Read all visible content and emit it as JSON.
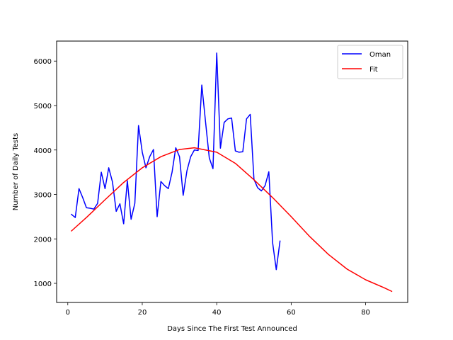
{
  "chart_data": {
    "type": "line",
    "title": "",
    "xlabel": "Days Since The First Test Announced",
    "ylabel": "Number of Daily Tests",
    "xlim": [
      -3,
      91.3
    ],
    "ylim": [
      570,
      6450
    ],
    "xticks": [
      0,
      20,
      40,
      60,
      80
    ],
    "yticks": [
      1000,
      2000,
      3000,
      4000,
      5000,
      6000
    ],
    "grid": false,
    "legend_position": "top-right",
    "series": [
      {
        "name": "Oman",
        "color": "#0000ff",
        "x": [
          1,
          2,
          3,
          4,
          5,
          6,
          7,
          8,
          9,
          10,
          11,
          12,
          13,
          14,
          15,
          16,
          17,
          18,
          19,
          20,
          21,
          22,
          23,
          24,
          25,
          26,
          27,
          28,
          29,
          30,
          31,
          32,
          33,
          34,
          35,
          36,
          37,
          38,
          39,
          40,
          41,
          42,
          43,
          44,
          45,
          46,
          47,
          48,
          49,
          50,
          51,
          52,
          53,
          54,
          55,
          56,
          57
        ],
        "y": [
          2550,
          2480,
          3130,
          2930,
          2700,
          2690,
          2670,
          2800,
          3500,
          3130,
          3600,
          3280,
          2620,
          2790,
          2340,
          3310,
          2440,
          2800,
          4550,
          3950,
          3600,
          3850,
          4010,
          2500,
          3290,
          3200,
          3130,
          3500,
          4050,
          3850,
          2980,
          3530,
          3850,
          4000,
          3990,
          5460,
          4630,
          3820,
          3580,
          6180,
          4040,
          4620,
          4700,
          4720,
          3980,
          3950,
          3960,
          4700,
          4800,
          3340,
          3150,
          3080,
          3200,
          3510,
          1920,
          1310,
          1950
        ]
      },
      {
        "name": "Fit",
        "color": "#ff0000",
        "x": [
          1,
          5,
          10,
          15,
          20,
          25,
          30,
          34,
          40,
          45,
          50,
          55,
          60,
          65,
          70,
          75,
          80,
          85,
          87
        ],
        "y": [
          2180,
          2480,
          2880,
          3270,
          3600,
          3850,
          4010,
          4050,
          3950,
          3700,
          3330,
          2930,
          2500,
          2050,
          1650,
          1320,
          1080,
          900,
          820
        ]
      }
    ]
  }
}
